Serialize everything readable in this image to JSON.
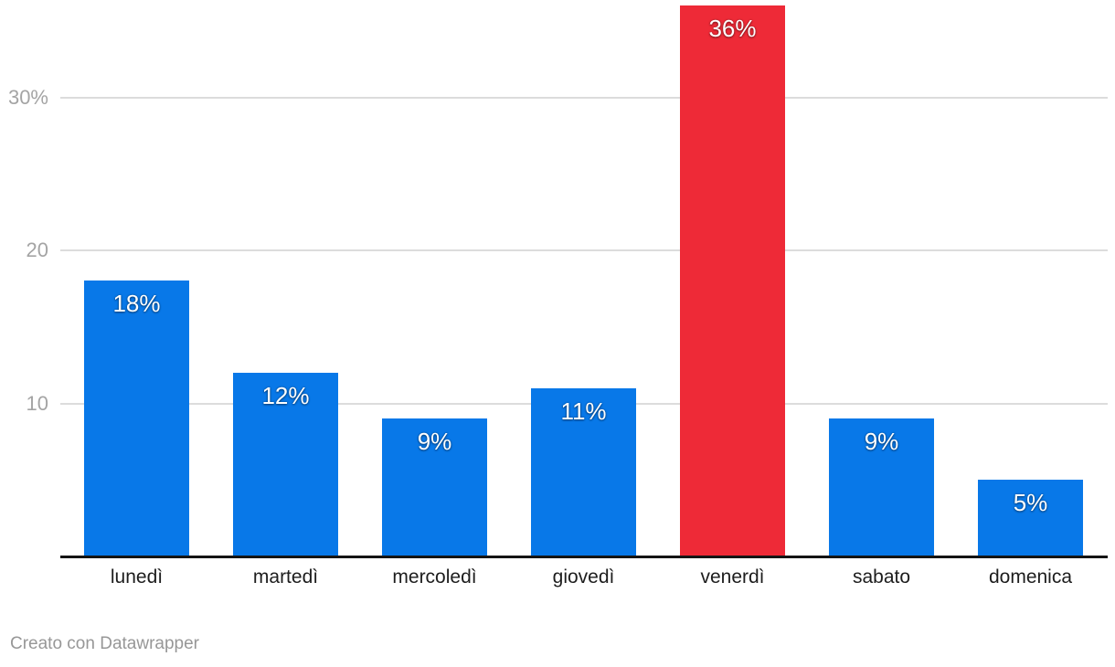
{
  "chart_data": {
    "type": "bar",
    "categories": [
      "lunedì",
      "martedì",
      "mercoledì",
      "giovedì",
      "venerdì",
      "sabato",
      "domenica"
    ],
    "values": [
      18,
      12,
      9,
      11,
      36,
      9,
      5
    ],
    "bar_labels": [
      "18%",
      "12%",
      "9%",
      "11%",
      "36%",
      "9%",
      "5%"
    ],
    "highlight_index": 4,
    "bar_color": "#0878e8",
    "highlight_color": "#ee2a37",
    "y_ticks": [
      {
        "value": 10,
        "label": "10"
      },
      {
        "value": 20,
        "label": "20"
      },
      {
        "value": 30,
        "label": "30%"
      }
    ],
    "ylim": [
      0,
      36.5
    ],
    "grid": true,
    "legend": "none",
    "gridline_color": "#dcdcdc",
    "axis_line_color": "#141414",
    "y_tick_color": "#a4a4a4",
    "x_tick_color": "#1d1d1d",
    "value_label_color": "#ffffff"
  },
  "footer": {
    "attribution": "Creato con Datawrapper"
  }
}
